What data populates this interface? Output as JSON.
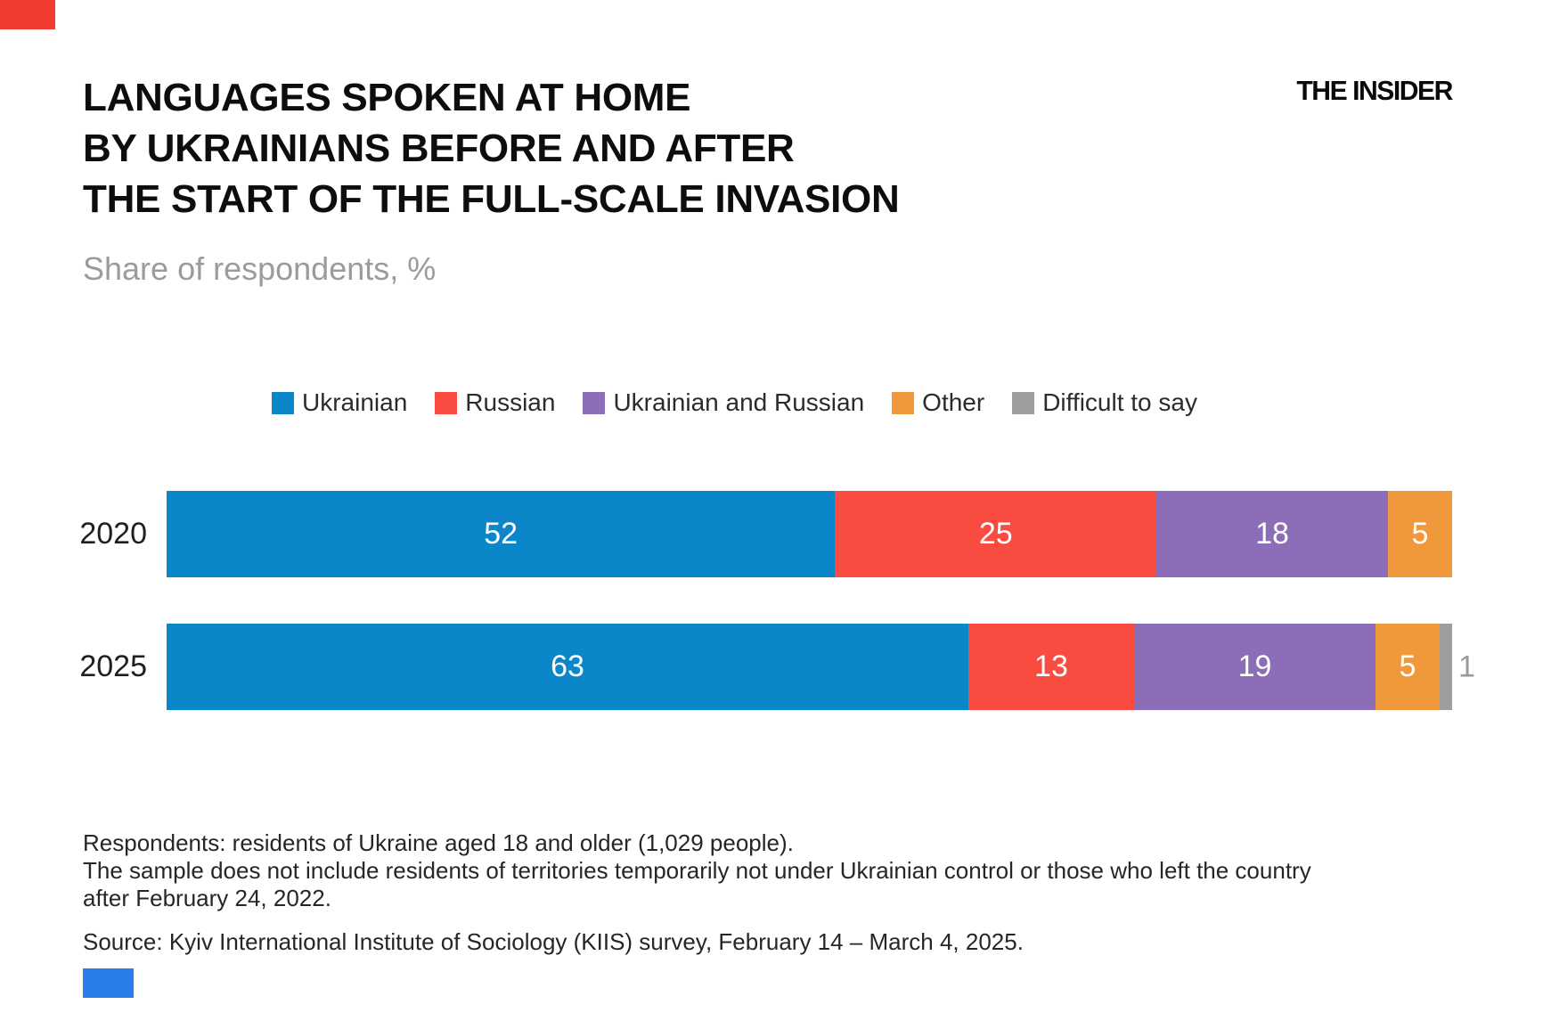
{
  "brand": {
    "logo_text": "THE INSIDER",
    "red_mark_color": "#f23c30",
    "blue_mark_color": "#2b7de9"
  },
  "title": {
    "lines": [
      "LANGUAGES SPOKEN AT HOME",
      "BY UKRAINIANS BEFORE AND AFTER",
      "THE START OF THE FULL-SCALE INVASION"
    ]
  },
  "subtitle": "Share of respondents, %",
  "chart_data": {
    "type": "bar",
    "orientation": "horizontal",
    "stacked": true,
    "unit": "%",
    "categories": [
      "2020",
      "2025"
    ],
    "series": [
      {
        "name": "Ukrainian",
        "color": "#0b86c8",
        "values": [
          52,
          63
        ]
      },
      {
        "name": "Russian",
        "color": "#f94b40",
        "values": [
          25,
          13
        ]
      },
      {
        "name": "Ukrainian and Russian",
        "color": "#8c6db8",
        "values": [
          18,
          19
        ]
      },
      {
        "name": "Other",
        "color": "#f0993c",
        "values": [
          5,
          5
        ]
      },
      {
        "name": "Difficult to say",
        "color": "#9e9e9e",
        "values": [
          0,
          1
        ]
      }
    ],
    "value_labels": "inside segments in white; values below 2 shown outside bar in gray",
    "legend_position": "top",
    "axis": "none (segments sized as share of total)"
  },
  "footnotes": {
    "lines": [
      "Respondents: residents of Ukraine aged 18 and older (1,029 people).",
      "The sample does not include residents of territories temporarily not under Ukrainian control or those who left the country",
      "after February 24, 2022."
    ],
    "source": "Source: Kyiv International Institute of Sociology (KIIS) survey, February 14 – March 4, 2025."
  }
}
